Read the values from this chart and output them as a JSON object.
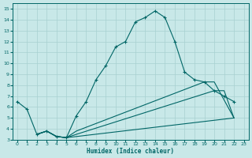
{
  "xlabel": "Humidex (Indice chaleur)",
  "xlim": [
    -0.5,
    23.5
  ],
  "ylim": [
    3,
    15.5
  ],
  "xticks": [
    0,
    1,
    2,
    3,
    4,
    5,
    6,
    7,
    8,
    9,
    10,
    11,
    12,
    13,
    14,
    15,
    16,
    17,
    18,
    19,
    20,
    21,
    22,
    23
  ],
  "yticks": [
    3,
    4,
    5,
    6,
    7,
    8,
    9,
    10,
    11,
    12,
    13,
    14,
    15
  ],
  "bg_color": "#c8e8e8",
  "line_color": "#006666",
  "grid_color": "#a8d0d0",
  "c1_x": [
    0,
    1,
    2,
    3,
    4,
    5,
    6,
    7,
    8,
    9,
    10,
    11,
    12,
    13,
    14,
    15,
    16,
    17,
    18,
    19,
    20,
    21,
    22
  ],
  "c1_y": [
    6.5,
    5.8,
    3.5,
    3.8,
    3.3,
    3.2,
    5.2,
    6.5,
    8.5,
    9.8,
    11.5,
    12.0,
    13.8,
    14.2,
    14.8,
    14.2,
    12.0,
    9.2,
    8.5,
    8.3,
    7.5,
    7.0,
    6.5
  ],
  "c2_x": [
    2,
    3,
    4,
    5,
    6,
    22
  ],
  "c2_y": [
    3.5,
    3.8,
    3.3,
    3.2,
    3.3,
    5.0
  ],
  "c3_x": [
    2,
    3,
    4,
    5,
    6,
    20,
    21,
    22
  ],
  "c3_y": [
    3.5,
    3.8,
    3.3,
    3.2,
    3.5,
    7.5,
    7.5,
    5.0
  ],
  "c4_x": [
    2,
    3,
    4,
    5,
    6,
    19,
    20,
    22
  ],
  "c4_y": [
    3.5,
    3.8,
    3.3,
    3.2,
    3.8,
    8.3,
    8.3,
    5.0
  ]
}
